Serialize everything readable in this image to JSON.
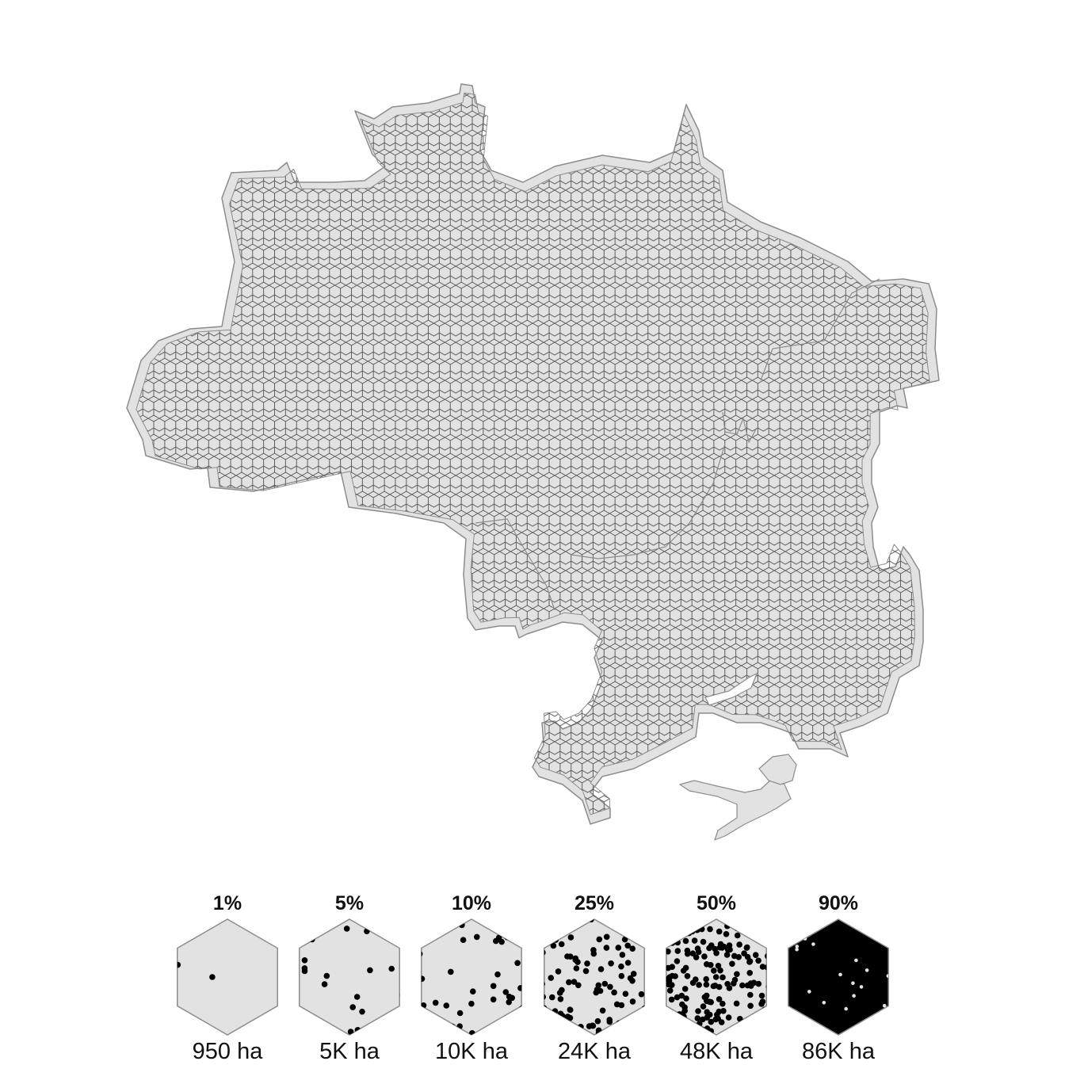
{
  "colors": {
    "land": "#e2e2e2",
    "outline": "#8c8c8c",
    "hex_stroke": "#5e5e5e",
    "fire": "#000000",
    "background": "#ffffff"
  },
  "legend": [
    {
      "percent": "1%",
      "area": "950 ha",
      "fraction": 0.01
    },
    {
      "percent": "5%",
      "area": "5K ha",
      "fraction": 0.05
    },
    {
      "percent": "10%",
      "area": "10K ha",
      "fraction": 0.1
    },
    {
      "percent": "25%",
      "area": "24K ha",
      "fraction": 0.25
    },
    {
      "percent": "50%",
      "area": "48K ha",
      "fraction": 0.5
    },
    {
      "percent": "90%",
      "area": "86K ha",
      "fraction": 0.9
    }
  ]
}
